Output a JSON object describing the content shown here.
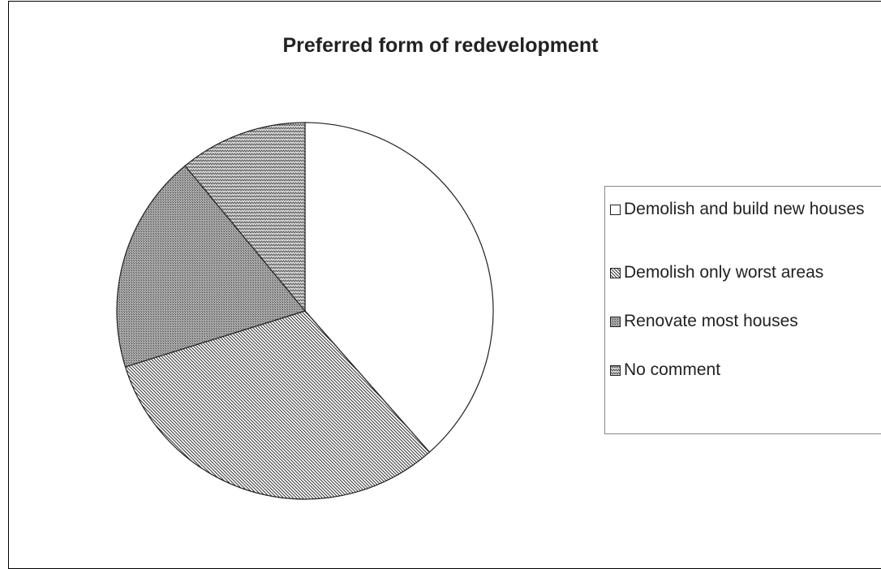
{
  "chart_data": {
    "type": "pie",
    "title": "Preferred form of redevelopment",
    "categories": [
      "Demolish and build new houses",
      "Demolish only worst areas",
      "Renovate most houses",
      "No comment"
    ],
    "values": [
      38.5,
      31.7,
      18.8,
      11.0
    ],
    "legend": "right"
  }
}
